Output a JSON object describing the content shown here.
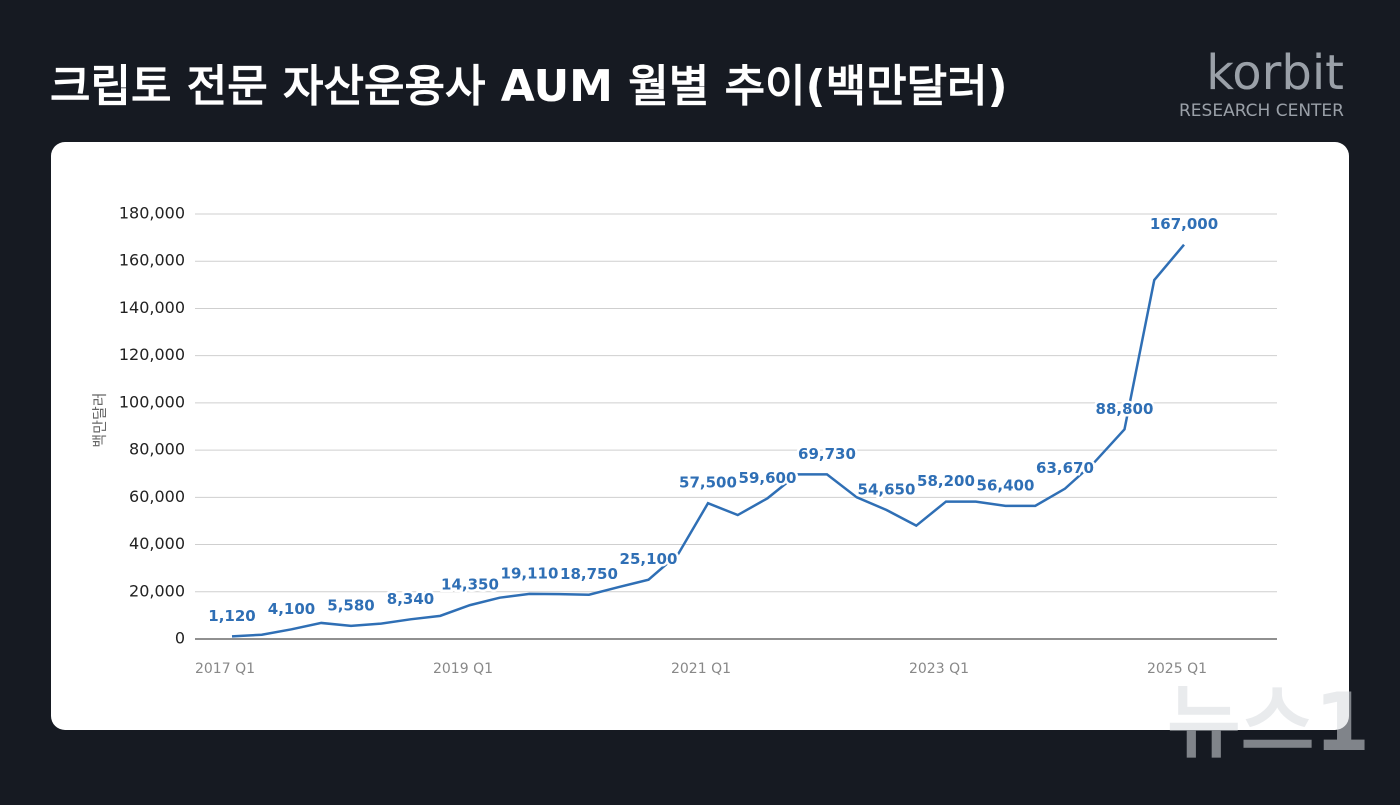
{
  "header": {
    "title": "크립토 전문 자산운용사 AUM 월별 추이(백만달러)",
    "logo": "korbit",
    "logo_sub": "RESEARCH CENTER",
    "watermark": "뉴스1"
  },
  "chart_data": {
    "type": "line",
    "ylabel": "백만달러",
    "categories": [
      "2017 Q1",
      null,
      null,
      null,
      null,
      null,
      null,
      null,
      "2019 Q1",
      null,
      null,
      null,
      null,
      null,
      null,
      null,
      "2021 Q1",
      null,
      null,
      null,
      null,
      null,
      null,
      null,
      "2023 Q1",
      null,
      null,
      null,
      null,
      null,
      null,
      null,
      "2025 Q1"
    ],
    "series": [
      {
        "name": "AUM",
        "color": "#2f6fb5",
        "values": [
          1120,
          1800,
          4100,
          6800,
          5580,
          6500,
          8340,
          9800,
          14350,
          17500,
          19110,
          19000,
          18750,
          22000,
          25100,
          36000,
          57500,
          52500,
          59600,
          69730,
          69730,
          60000,
          54650,
          48000,
          58200,
          58200,
          56400,
          56400,
          63670,
          75000,
          88800,
          152000,
          167000
        ],
        "value_labels": [
          "1,120",
          null,
          "4,100",
          null,
          "5,580",
          null,
          "8,340",
          null,
          "14,350",
          null,
          "19,110",
          null,
          "18,750",
          null,
          "25,100",
          null,
          "57,500",
          null,
          "59,600",
          null,
          "69,730",
          null,
          "54,650",
          null,
          "58,200",
          null,
          "56,400",
          null,
          "63,670",
          null,
          "88,800",
          null,
          "167,000"
        ]
      }
    ],
    "ylim": [
      0,
      180000
    ],
    "yticks": [
      {
        "value": 0,
        "label": "0"
      },
      {
        "value": 20000,
        "label": "20,000"
      },
      {
        "value": 40000,
        "label": "40,000"
      },
      {
        "value": 60000,
        "label": "60,000"
      },
      {
        "value": 80000,
        "label": "80,000"
      },
      {
        "value": 100000,
        "label": "100,000"
      },
      {
        "value": 120000,
        "label": "120,000"
      },
      {
        "value": 140000,
        "label": "140,000"
      },
      {
        "value": 160000,
        "label": "160,000"
      },
      {
        "value": 180000,
        "label": "180,000"
      }
    ],
    "grid": true
  }
}
